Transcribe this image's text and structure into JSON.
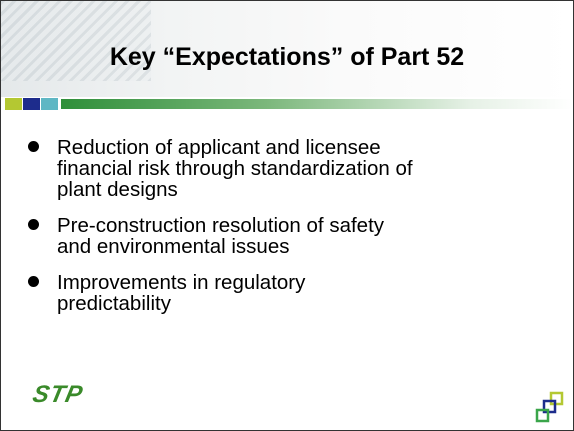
{
  "slide": {
    "title": "Key “Expectations” of Part 52",
    "bullets": [
      {
        "lines": [
          "Reduction of applicant and licensee",
          "financial risk through standardization of",
          "plant designs"
        ]
      },
      {
        "lines": [
          "Pre-construction resolution of safety",
          "and environmental issues"
        ]
      },
      {
        "lines": [
          "Improvements in regulatory",
          "predictability"
        ]
      }
    ],
    "logo": "STP"
  }
}
